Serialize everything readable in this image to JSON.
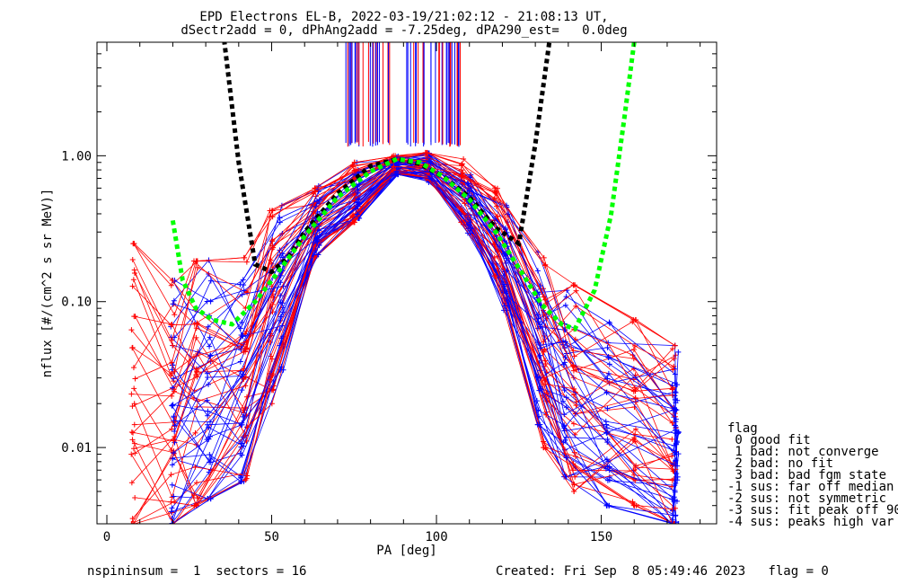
{
  "title_line1": "EPD Electrons EL-B, 2022-03-19/21:02:12 - 21:08:13 UT,",
  "title_line2": "dSectr2add = 0, dPhAng2add = -7.25deg, dPA290_est=   0.0deg",
  "footer_left": "nspininsum =  1  sectors = 16",
  "footer_right": "Created: Fri Sep  8 05:49:46 2023   flag = 0",
  "chart_data": {
    "type": "line",
    "xlabel": "PA [deg]",
    "ylabel": "nflux [#/(cm^2 s sr MeV)]",
    "xlim": [
      -3,
      185
    ],
    "ylim": [
      0.003,
      6.0
    ],
    "yscale": "log",
    "x_ticks": [
      0,
      50,
      100,
      150
    ],
    "y_ticks": [
      {
        "value": 0.01,
        "label": "0.01"
      },
      {
        "value": 0.1,
        "label": "0.10"
      },
      {
        "value": 1.0,
        "label": "1.00"
      }
    ],
    "legend": {
      "title": "flag",
      "placement": "right, outside plot",
      "entries": [
        " 0 good fit",
        " 1 bad: not converge",
        " 2 bad: no fit",
        " 3 bad: bad fgm state",
        "-1 sus: far off median",
        "-2 sus: not symmetric",
        "-3 sus: fit peak off 90",
        "-4 sus: peaks high var"
      ]
    },
    "colors": {
      "up": "#ff0000",
      "down": "#0000ff",
      "fit_a": "#000000",
      "fit_b": "#00ff00"
    },
    "series_families": [
      {
        "color": "up",
        "x": [
          8,
          20,
          27,
          42,
          50,
          63,
          75,
          87,
          97,
          108,
          118,
          133,
          142,
          160,
          172
        ]
      },
      {
        "color": "down",
        "x": [
          20,
          31,
          41,
          53,
          64,
          76,
          88,
          98,
          110,
          121,
          131,
          139,
          152,
          172,
          173
        ]
      }
    ],
    "envelope": {
      "x": [
        8,
        20,
        27,
        42,
        50,
        63,
        75,
        87,
        97,
        108,
        118,
        133,
        142,
        152,
        160,
        172
      ],
      "y_min": [
        0.003,
        0.003,
        0.004,
        0.006,
        0.02,
        0.2,
        0.35,
        0.75,
        0.7,
        0.35,
        0.15,
        0.01,
        0.005,
        0.004,
        0.004,
        0.003
      ],
      "y_max": [
        0.25,
        0.14,
        0.19,
        0.2,
        0.42,
        0.6,
        0.9,
        1.0,
        1.05,
        0.95,
        0.6,
        0.2,
        0.13,
        0.085,
        0.075,
        0.05
      ]
    },
    "fit_black": {
      "x": [
        35,
        40,
        45,
        50,
        55,
        60,
        70,
        80,
        88,
        95,
        102,
        110,
        118,
        125,
        130,
        135
      ],
      "y": [
        8.0,
        0.9,
        0.18,
        0.16,
        0.2,
        0.3,
        0.55,
        0.85,
        0.95,
        0.88,
        0.72,
        0.52,
        0.32,
        0.25,
        1.2,
        8.0
      ]
    },
    "fit_green": {
      "x": [
        20,
        23,
        27,
        32,
        38,
        45,
        52,
        60,
        70,
        80,
        88,
        95,
        102,
        110,
        118,
        125,
        132,
        138,
        142,
        148,
        153,
        157,
        160
      ],
      "y": [
        0.36,
        0.14,
        0.09,
        0.075,
        0.07,
        0.1,
        0.16,
        0.28,
        0.52,
        0.78,
        0.95,
        0.9,
        0.72,
        0.5,
        0.3,
        0.17,
        0.095,
        0.07,
        0.065,
        0.12,
        0.4,
        1.8,
        6.0
      ]
    }
  }
}
